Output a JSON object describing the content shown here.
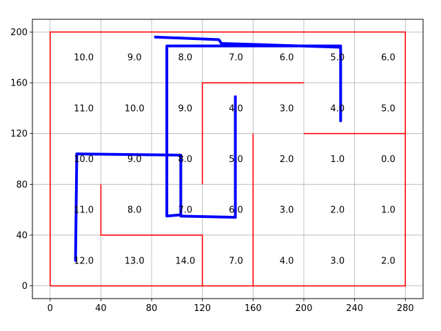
{
  "chart_data": {
    "type": "line",
    "title": "",
    "xlabel": "",
    "ylabel": "",
    "xlim": [
      -14,
      294
    ],
    "ylim": [
      -10,
      210
    ],
    "grid": true,
    "x_ticks": [
      0,
      40,
      80,
      120,
      160,
      200,
      240,
      280
    ],
    "y_ticks": [
      0,
      40,
      80,
      120,
      160,
      200
    ],
    "x_tick_labels": [
      "0",
      "40",
      "80",
      "120",
      "160",
      "200",
      "240",
      "280"
    ],
    "y_tick_labels": [
      "0",
      "40",
      "80",
      "120",
      "160",
      "200"
    ],
    "colors": {
      "walls": "#ff0000",
      "path": "#0000ff",
      "grid": "#b0b0b0"
    },
    "walls": [
      [
        [
          0,
          0
        ],
        [
          280,
          0
        ],
        [
          280,
          200
        ],
        [
          0,
          200
        ],
        [
          0,
          0
        ]
      ],
      [
        [
          120,
          80
        ],
        [
          120,
          160
        ],
        [
          200,
          160
        ]
      ],
      [
        [
          200,
          120
        ],
        [
          280,
          120
        ]
      ],
      [
        [
          160,
          0
        ],
        [
          160,
          120
        ]
      ],
      [
        [
          40,
          80
        ],
        [
          40,
          40
        ],
        [
          120,
          40
        ],
        [
          120,
          0
        ]
      ]
    ],
    "path": [
      [
        20,
        20
      ],
      [
        21,
        104
      ],
      [
        103,
        103
      ],
      [
        103,
        56
      ],
      [
        92,
        55
      ],
      [
        92,
        189
      ],
      [
        229,
        189
      ],
      [
        229,
        130
      ],
      [
        229,
        188
      ],
      [
        135,
        191
      ],
      [
        133,
        194
      ],
      [
        83,
        196
      ]
    ],
    "path_branches": [
      [
        [
          103,
          55
        ],
        [
          146,
          54
        ],
        [
          146,
          149
        ]
      ]
    ],
    "cell_values": [
      {
        "x": 20,
        "y": 180,
        "text": "10.0"
      },
      {
        "x": 60,
        "y": 180,
        "text": "9.0"
      },
      {
        "x": 100,
        "y": 180,
        "text": "8.0"
      },
      {
        "x": 140,
        "y": 180,
        "text": "7.0"
      },
      {
        "x": 180,
        "y": 180,
        "text": "6.0"
      },
      {
        "x": 220,
        "y": 180,
        "text": "5.0"
      },
      {
        "x": 260,
        "y": 180,
        "text": "6.0"
      },
      {
        "x": 20,
        "y": 140,
        "text": "11.0"
      },
      {
        "x": 60,
        "y": 140,
        "text": "10.0"
      },
      {
        "x": 100,
        "y": 140,
        "text": "9.0"
      },
      {
        "x": 140,
        "y": 140,
        "text": "4.0"
      },
      {
        "x": 180,
        "y": 140,
        "text": "3.0"
      },
      {
        "x": 220,
        "y": 140,
        "text": "4.0"
      },
      {
        "x": 260,
        "y": 140,
        "text": "5.0"
      },
      {
        "x": 20,
        "y": 100,
        "text": "10.0"
      },
      {
        "x": 60,
        "y": 100,
        "text": "9.0"
      },
      {
        "x": 100,
        "y": 100,
        "text": "8.0"
      },
      {
        "x": 140,
        "y": 100,
        "text": "5.0"
      },
      {
        "x": 180,
        "y": 100,
        "text": "2.0"
      },
      {
        "x": 220,
        "y": 100,
        "text": "1.0"
      },
      {
        "x": 260,
        "y": 100,
        "text": "0.0"
      },
      {
        "x": 20,
        "y": 60,
        "text": "11.0"
      },
      {
        "x": 60,
        "y": 60,
        "text": "8.0"
      },
      {
        "x": 100,
        "y": 60,
        "text": "7.0"
      },
      {
        "x": 140,
        "y": 60,
        "text": "6.0"
      },
      {
        "x": 180,
        "y": 60,
        "text": "3.0"
      },
      {
        "x": 220,
        "y": 60,
        "text": "2.0"
      },
      {
        "x": 260,
        "y": 60,
        "text": "1.0"
      },
      {
        "x": 20,
        "y": 20,
        "text": "12.0"
      },
      {
        "x": 60,
        "y": 20,
        "text": "13.0"
      },
      {
        "x": 100,
        "y": 20,
        "text": "14.0"
      },
      {
        "x": 140,
        "y": 20,
        "text": "7.0"
      },
      {
        "x": 180,
        "y": 20,
        "text": "4.0"
      },
      {
        "x": 220,
        "y": 20,
        "text": "3.0"
      },
      {
        "x": 260,
        "y": 20,
        "text": "2.0"
      }
    ]
  }
}
